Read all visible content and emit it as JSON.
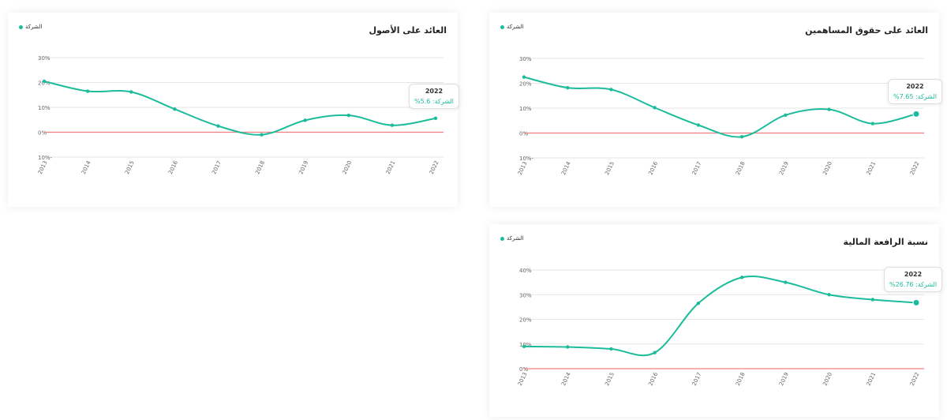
{
  "colors": {
    "line": "#1cbc9b",
    "zero_line": "#f08080",
    "grid": "#e6e6e6",
    "tick": "#666666"
  },
  "chart_data": [
    {
      "type": "line",
      "title": "العائد على الأصول",
      "legend": "الشركة",
      "legend_position": "top-left",
      "x": [
        "2013",
        "2014",
        "2015",
        "2016",
        "2017",
        "2018",
        "2019",
        "2020",
        "2021",
        "2022"
      ],
      "series": [
        {
          "name": "الشركة",
          "values": [
            20.5,
            16.5,
            16.2,
            9.3,
            2.5,
            -1.0,
            4.8,
            6.8,
            2.8,
            5.6
          ]
        }
      ],
      "yticks": [
        30,
        20,
        10,
        0,
        -10
      ],
      "ytick_labels": [
        "30%",
        "20%",
        "10%",
        "0%",
        "10%-"
      ],
      "ylim": [
        -10,
        30
      ],
      "grid": true,
      "tooltip": {
        "year": "2022",
        "label": "الشركة",
        "value": "5.6%"
      }
    },
    {
      "type": "line",
      "title": "العائد على حقوق المساهمين",
      "legend": "الشركة",
      "legend_position": "top-left",
      "x": [
        "2013",
        "2014",
        "2015",
        "2016",
        "2017",
        "2018",
        "2019",
        "2020",
        "2021",
        "2022"
      ],
      "series": [
        {
          "name": "الشركة",
          "values": [
            22.5,
            18.2,
            17.5,
            10.2,
            3.2,
            -1.5,
            7.2,
            9.5,
            3.8,
            7.65
          ]
        }
      ],
      "yticks": [
        30,
        20,
        10,
        0,
        -10
      ],
      "ytick_labels": [
        "30%",
        "20%",
        "10%",
        "0%",
        "10%-"
      ],
      "ylim": [
        -10,
        30
      ],
      "grid": true,
      "tooltip": {
        "year": "2022",
        "label": "الشركة",
        "value": "7.65%"
      }
    },
    {
      "type": "line",
      "title": "نسبة الرافعة المالية",
      "legend": "الشركة",
      "legend_position": "top-left",
      "x": [
        "2013",
        "2014",
        "2015",
        "2016",
        "2017",
        "2018",
        "2019",
        "2020",
        "2021",
        "2022"
      ],
      "series": [
        {
          "name": "الشركة",
          "values": [
            9.0,
            8.8,
            8.0,
            6.5,
            26.5,
            37.0,
            35.0,
            30.0,
            28.0,
            26.76
          ]
        }
      ],
      "yticks": [
        40,
        30,
        20,
        10,
        0
      ],
      "ytick_labels": [
        "40%",
        "30%",
        "20%",
        "10%",
        "0%"
      ],
      "ylim": [
        0,
        40
      ],
      "grid": true,
      "tooltip": {
        "year": "2022",
        "label": "الشركة",
        "value": "26.76%"
      }
    }
  ]
}
